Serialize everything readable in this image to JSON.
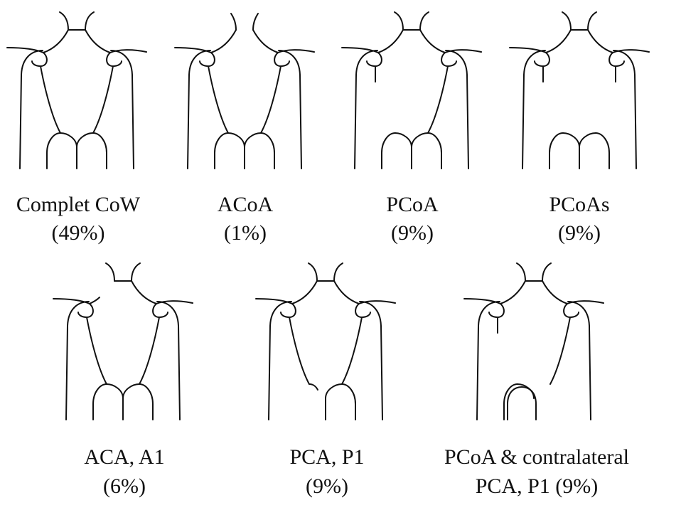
{
  "figure": {
    "line_color": "#111111",
    "variants": [
      {
        "id": "complete",
        "caption_line1": "Complet CoW",
        "caption_line2": "(49%)",
        "acoa": true,
        "left_pcoa": true,
        "right_pcoa": true,
        "aca_a1": true,
        "left_pca_p1": true,
        "right_pca_p1": true
      },
      {
        "id": "acoa",
        "caption_line1": "ACoA",
        "caption_line2": "(1%)",
        "acoa": false,
        "left_pcoa": true,
        "right_pcoa": true,
        "aca_a1": true,
        "left_pca_p1": true,
        "right_pca_p1": true
      },
      {
        "id": "pcoa",
        "caption_line1": "PCoA",
        "caption_line2": "(9%)",
        "acoa": true,
        "left_pcoa": false,
        "right_pcoa": true,
        "aca_a1": true,
        "left_pca_p1": true,
        "right_pca_p1": true
      },
      {
        "id": "pcoas",
        "caption_line1": "PCoAs",
        "caption_line2": "(9%)",
        "acoa": true,
        "left_pcoa": false,
        "right_pcoa": false,
        "aca_a1": true,
        "left_pca_p1": true,
        "right_pca_p1": true
      },
      {
        "id": "aca-a1",
        "caption_line1": "ACA, A1",
        "caption_line2": "(6%)",
        "acoa": true,
        "left_pcoa": true,
        "right_pcoa": true,
        "aca_a1": false,
        "left_pca_p1": true,
        "right_pca_p1": true
      },
      {
        "id": "pca-p1",
        "caption_line1": "PCA, P1",
        "caption_line2": "(9%)",
        "acoa": true,
        "left_pcoa": true,
        "right_pcoa": true,
        "aca_a1": true,
        "left_pca_p1": false,
        "right_pca_p1": true
      },
      {
        "id": "pcoa-contralateral-pca-p1",
        "caption_line1": "PCoA & contralateral",
        "caption_line2": "PCA, P1 (9%)",
        "acoa": true,
        "left_pcoa": false,
        "right_pcoa": true,
        "aca_a1": true,
        "left_pca_p1": true,
        "right_pca_p1": false
      }
    ]
  }
}
